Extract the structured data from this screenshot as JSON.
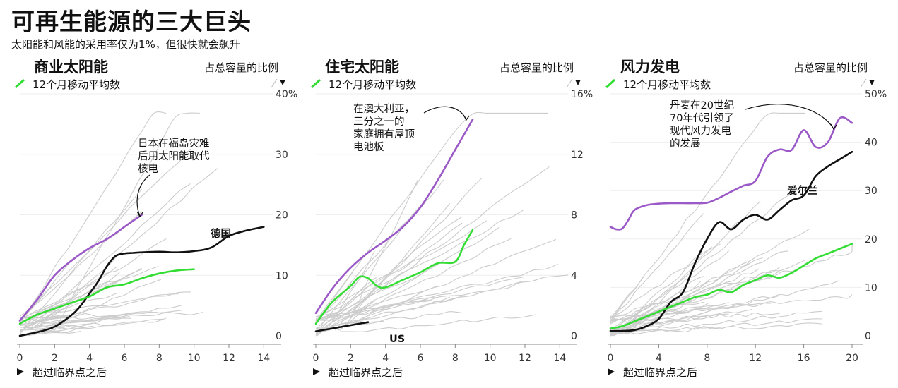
{
  "title": "可再生能源的三大巨头",
  "subtitle": "太阳能和风能的采用率仅为1%，但很快就会飙升",
  "colors": {
    "highlight": "#9b59c7",
    "country": "#111111",
    "average": "#33dd33",
    "background_lines": "#cccccc"
  },
  "chart_data": [
    {
      "type": "line",
      "title": "商业太阳能",
      "legend": "12个月移动平均数",
      "ylabel": "占总容量的比例",
      "xlabel": "超过临界点之后",
      "xlim": [
        0,
        15
      ],
      "ylim": [
        0,
        40
      ],
      "x_ticks": [
        "0",
        "2",
        "4",
        "6",
        "8",
        "10",
        "12",
        "14"
      ],
      "y_ticks": [
        "0",
        "10",
        "20",
        "30",
        "40%"
      ],
      "annotation": "日本在福岛灾难后用太阳能取代核电",
      "annotation_lines": [
        "日本在福岛灾难",
        "后用太阳能取代",
        "核电"
      ],
      "series": [
        {
          "role": "highlight",
          "x": [
            0,
            1,
            2,
            3,
            4,
            5,
            6,
            7
          ],
          "y": [
            2.5,
            6,
            10,
            12.5,
            14.5,
            16,
            18,
            20
          ]
        },
        {
          "role": "country",
          "name": "德国",
          "x": [
            0,
            1,
            2,
            3,
            3.5,
            4,
            4.5,
            5,
            5.5,
            6,
            6.5,
            7,
            8,
            9,
            10,
            11,
            12,
            13,
            14
          ],
          "y": [
            0,
            0.6,
            1.5,
            3.5,
            5,
            7,
            9,
            11.5,
            13.2,
            13.6,
            13.7,
            13.8,
            13.9,
            13.8,
            14,
            14.6,
            16.5,
            17.4,
            18
          ]
        },
        {
          "role": "average",
          "x": [
            0,
            1,
            2,
            3,
            4,
            5,
            6,
            7,
            8,
            9,
            10
          ],
          "y": [
            2,
            3.5,
            4.5,
            5.5,
            6.5,
            8,
            8.5,
            9.5,
            10.3,
            10.8,
            11
          ]
        }
      ]
    },
    {
      "type": "line",
      "title": "住宅太阳能",
      "legend": "12个月移动平均数",
      "ylabel": "占总容量的比例",
      "xlabel": "超过临界点之后",
      "xlim": [
        0,
        15
      ],
      "ylim": [
        0,
        16
      ],
      "x_ticks": [
        "0",
        "2",
        "4",
        "6",
        "8",
        "10",
        "12",
        "14"
      ],
      "y_ticks": [
        "0",
        "4",
        "8",
        "12",
        "16%"
      ],
      "annotation": "在澳大利亚，三分之一的家庭拥有屋顶电池板",
      "annotation_lines": [
        "在澳大利亚，",
        "三分之一的",
        "家庭拥有屋顶",
        "电池板"
      ],
      "series": [
        {
          "role": "highlight",
          "x": [
            0,
            1,
            2,
            3,
            4,
            5,
            6,
            7,
            8,
            9
          ],
          "y": [
            1.5,
            3.2,
            4.5,
            5.5,
            6.3,
            7.2,
            8.5,
            10.3,
            12.3,
            14.3
          ]
        },
        {
          "role": "country",
          "name": "US",
          "x": [
            0,
            1,
            2,
            3
          ],
          "y": [
            0.3,
            0.5,
            0.7,
            0.9
          ]
        },
        {
          "role": "average",
          "x": [
            0,
            0.5,
            1,
            2,
            2.5,
            3,
            3.5,
            4,
            5,
            6,
            7,
            8,
            8.5,
            9
          ],
          "y": [
            0.8,
            1.6,
            2.3,
            3.3,
            3.9,
            3.8,
            3.3,
            3.2,
            3.7,
            4.2,
            4.8,
            4.9,
            6,
            7
          ]
        }
      ]
    },
    {
      "type": "line",
      "title": "风力发电",
      "legend": "12个月移动平均数",
      "ylabel": "占总容量的比例",
      "xlabel": "超过临界点之后",
      "xlim": [
        0,
        22
      ],
      "ylim": [
        0,
        50
      ],
      "x_ticks": [
        "0",
        "4",
        "8",
        "12",
        "16",
        "20"
      ],
      "y_ticks": [
        "0",
        "10",
        "20",
        "30",
        "40",
        "50%"
      ],
      "annotation": "丹麦在20世纪70年代引领了现代风力发电的发展",
      "annotation_lines": [
        "丹麦在20世纪",
        "70年代引领了",
        "现代风力发电",
        "的发展"
      ],
      "series": [
        {
          "role": "highlight",
          "x": [
            0,
            0.5,
            1,
            1.5,
            2,
            3,
            4,
            5,
            6,
            7,
            8,
            9,
            10,
            11,
            12,
            13,
            14,
            15,
            16,
            17,
            18,
            19,
            20
          ],
          "y": [
            22.5,
            22,
            22.2,
            24,
            26,
            27,
            27.3,
            27.4,
            27.4,
            27.4,
            27.5,
            28.5,
            29.8,
            31,
            32,
            37,
            38.5,
            38.4,
            42.5,
            39,
            40,
            45,
            44
          ]
        },
        {
          "role": "country",
          "name": "爱尔兰",
          "x": [
            0,
            1,
            2,
            3,
            4,
            5,
            6,
            7,
            8,
            9,
            10,
            11,
            12,
            13,
            14,
            15,
            16,
            17,
            18,
            19,
            20
          ],
          "y": [
            1,
            1,
            1.2,
            2,
            3.5,
            7,
            9,
            15,
            20,
            23.5,
            22,
            24,
            25,
            24,
            26,
            28,
            29,
            33,
            35,
            36.5,
            38
          ]
        },
        {
          "role": "average",
          "x": [
            0,
            1,
            2,
            3,
            4,
            5,
            6,
            7,
            8,
            9,
            10,
            11,
            12,
            13,
            14,
            15,
            16,
            17,
            18,
            19,
            20
          ],
          "y": [
            1.5,
            2,
            3,
            4,
            5,
            6,
            7,
            8,
            8.5,
            9.5,
            9,
            10.5,
            11.5,
            12.5,
            12,
            13,
            14.5,
            16,
            17,
            18,
            19
          ]
        }
      ]
    }
  ]
}
